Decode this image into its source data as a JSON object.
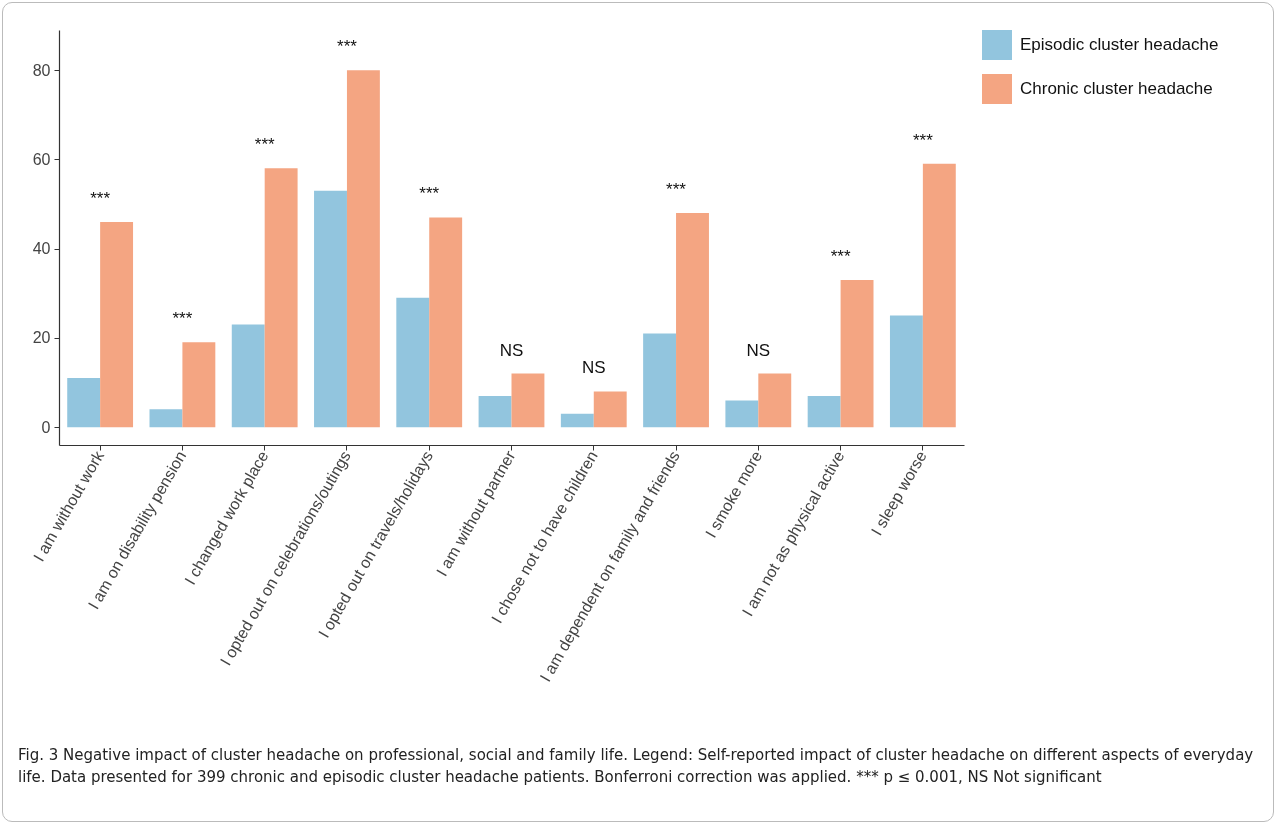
{
  "chart_data": {
    "type": "bar",
    "categories": [
      "I am without work",
      "I am on disability pension",
      "I changed work place",
      "I opted out on celebrations/outings",
      "I opted out on travels/holidays",
      "I am without partner",
      "I chose not to have children",
      "I am dependent on family and friends",
      "I smoke more",
      "I am not as physical active",
      "I sleep worse"
    ],
    "series": [
      {
        "name": "Episodic cluster headache",
        "color": "#92c5de",
        "values": [
          11,
          4,
          23,
          53,
          29,
          7,
          3,
          21,
          6,
          7,
          25
        ]
      },
      {
        "name": "Chronic cluster headache",
        "color": "#f4a582",
        "values": [
          46,
          19,
          58,
          80,
          47,
          12,
          8,
          48,
          12,
          33,
          59
        ]
      }
    ],
    "ylim": [
      -4,
      89
    ],
    "yticks": [
      0,
      20,
      40,
      60,
      80
    ],
    "grid": false,
    "legend": "right",
    "annotations": [
      {
        "text": "***",
        "x": "I am without work",
        "y": 46
      },
      {
        "text": "***",
        "x": "I am on disability pension",
        "y": 19
      },
      {
        "text": "***",
        "x": "I changed work place",
        "y": 58
      },
      {
        "text": "***",
        "x": "I opted out on celebrations/outings",
        "y": 80
      },
      {
        "text": "***",
        "x": "I opted out on travels/holidays",
        "y": 47
      },
      {
        "text": "NS",
        "x": "I am without partner",
        "y": 12
      },
      {
        "text": "NS",
        "x": "I chose not to have children",
        "y": 8
      },
      {
        "text": "***",
        "x": "I am dependent on family and friends",
        "y": 48
      },
      {
        "text": "NS",
        "x": "I smoke more",
        "y": 12
      },
      {
        "text": "***",
        "x": "I am not as physical active",
        "y": 33
      },
      {
        "text": "***",
        "x": "I sleep worse",
        "y": 59
      },
      "Fig. 3 Negative impact of cluster headache on professional, social and family life. Legend: Self-reported impact of cluster headache on different aspects of everyday life. Data presented for 399 chronic and episodic cluster headache patients. Bonferroni correction was applied. *** p ≤ 0.001, NS Not significant"
    ]
  }
}
